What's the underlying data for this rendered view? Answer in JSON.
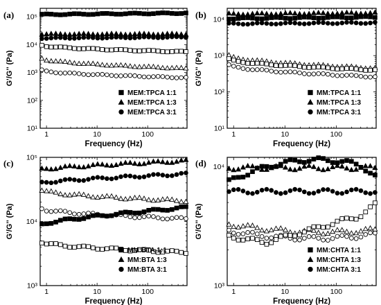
{
  "chart_data": [
    {
      "type": "scatter",
      "panel_label": "(a)",
      "xlabel": "Frequency (Hz)",
      "ylabel": "G'/G'' (Pa)",
      "xscale": "log",
      "yscale": "log",
      "xlim": [
        0.75,
        600
      ],
      "ylim": [
        10,
        200000
      ],
      "xticks": [
        1,
        10,
        100
      ],
      "yticks": [
        10,
        100,
        1000,
        10000,
        100000
      ],
      "ytick_labels": [
        "10¹",
        "10²",
        "10³",
        "10⁴",
        "10⁵"
      ],
      "legend_position": "bottom-right",
      "legend": [
        {
          "label": "MEM:TPCA 1:1",
          "marker": "square"
        },
        {
          "label": "MEM:TPCA 1:3",
          "marker": "triangle"
        },
        {
          "label": "MEM:TPCA 3:1",
          "marker": "circle"
        }
      ],
      "series": [
        {
          "label": "MEM:TPCA 1:1",
          "marker": "square",
          "filled": true,
          "y_start": 120000,
          "y_end": 135000,
          "shape": "flat",
          "points": 32
        },
        {
          "label": "MEM:TPCA 1:3",
          "marker": "triangle",
          "filled": true,
          "y_start": 24000,
          "y_end": 24000,
          "shape": "flat",
          "points": 32
        },
        {
          "label": "MEM:TPCA 3:1",
          "marker": "circle",
          "filled": true,
          "y_start": 17000,
          "y_end": 18500,
          "shape": "flat",
          "points": 32
        },
        {
          "label": "MEM:TPCA 1:1",
          "marker": "square",
          "filled": false,
          "y_start": 9500,
          "y_end": 5500,
          "shape": "decay",
          "points": 32
        },
        {
          "label": "MEM:TPCA 1:3",
          "marker": "triangle",
          "filled": false,
          "y_start": 3200,
          "y_end": 1400,
          "shape": "decay",
          "points": 32
        },
        {
          "label": "MEM:TPCA 3:1",
          "marker": "circle",
          "filled": false,
          "y_start": 1200,
          "y_end": 650,
          "shape": "decay",
          "points": 32
        }
      ]
    },
    {
      "type": "scatter",
      "panel_label": "(b)",
      "xlabel": "Frequency (Hz)",
      "ylabel": "G'/G'' (Pa)",
      "xscale": "log",
      "yscale": "log",
      "xlim": [
        0.75,
        600
      ],
      "ylim": [
        10,
        20000
      ],
      "xticks": [
        1,
        10,
        100
      ],
      "yticks": [
        10,
        100,
        1000,
        10000
      ],
      "ytick_labels": [
        "10¹",
        "10²",
        "10³",
        "10⁴"
      ],
      "legend_position": "bottom-right",
      "legend": [
        {
          "label": "MM:TPCA 1:1",
          "marker": "square"
        },
        {
          "label": "MM:TPCA 1:3",
          "marker": "triangle"
        },
        {
          "label": "MM:TPCA 3:1",
          "marker": "circle"
        }
      ],
      "series": [
        {
          "label": "MM:TPCA 1:3",
          "marker": "triangle",
          "filled": true,
          "y_start": 14000,
          "y_end": 15000,
          "shape": "flat",
          "points": 32
        },
        {
          "label": "MM:TPCA 1:1",
          "marker": "square",
          "filled": true,
          "y_start": 10500,
          "y_end": 11500,
          "shape": "flat",
          "points": 32
        },
        {
          "label": "MM:TPCA 3:1",
          "marker": "circle",
          "filled": true,
          "y_start": 7500,
          "y_end": 8000,
          "shape": "flat",
          "points": 32
        },
        {
          "label": "MM:TPCA 1:3",
          "marker": "triangle",
          "filled": false,
          "y_start": 1000,
          "y_end": 450,
          "shape": "decay",
          "points": 32
        },
        {
          "label": "MM:TPCA 1:1",
          "marker": "square",
          "filled": false,
          "y_start": 800,
          "y_end": 400,
          "shape": "decay",
          "points": 32
        },
        {
          "label": "MM:TPCA 3:1",
          "marker": "circle",
          "filled": false,
          "y_start": 550,
          "y_end": 260,
          "shape": "decay",
          "points": 32
        }
      ]
    },
    {
      "type": "scatter",
      "panel_label": "(c)",
      "xlabel": "Frequency (Hz)",
      "ylabel": "G'/G'' (Pa)",
      "xscale": "log",
      "yscale": "log",
      "xlim": [
        0.75,
        600
      ],
      "ylim": [
        1000,
        100000
      ],
      "xticks": [
        1,
        10,
        100
      ],
      "yticks": [
        1000,
        10000,
        100000
      ],
      "ytick_labels": [
        "10³",
        "10⁴",
        "10⁵"
      ],
      "legend_position": "bottom-right",
      "legend": [
        {
          "label": "MM:BTA 1:1",
          "marker": "square"
        },
        {
          "label": "MM:BTA 1:3",
          "marker": "triangle"
        },
        {
          "label": "MM:BTA 3:1",
          "marker": "circle"
        }
      ],
      "series": [
        {
          "label": "MM:BTA 1:3",
          "marker": "triangle",
          "filled": true,
          "y_start": 65000,
          "y_end": 88000,
          "shape": "rise",
          "points": 32
        },
        {
          "label": "MM:BTA 3:1",
          "marker": "circle",
          "filled": true,
          "y_start": 40000,
          "y_end": 55000,
          "shape": "rise",
          "points": 32
        },
        {
          "label": "MM:BTA 1:3",
          "marker": "triangle",
          "filled": false,
          "y_start": 31000,
          "y_end": 21000,
          "shape": "decay",
          "points": 32
        },
        {
          "label": "MM:BTA 3:1",
          "marker": "circle",
          "filled": false,
          "y_start": 16000,
          "y_end": 11000,
          "shape": "decay",
          "points": 32
        },
        {
          "label": "MM:BTA 1:1",
          "marker": "square",
          "filled": true,
          "y_start": 9000,
          "y_end": 16500,
          "shape": "rise",
          "points": 32
        },
        {
          "label": "MM:BTA 1:1",
          "marker": "square",
          "filled": false,
          "y_start": 4800,
          "y_end": 3300,
          "shape": "decay",
          "points": 32
        }
      ]
    },
    {
      "type": "scatter",
      "panel_label": "(d)",
      "xlabel": "Frequency (Hz)",
      "ylabel": "G'/G'' (Pa)",
      "xscale": "log",
      "yscale": "log",
      "xlim": [
        0.75,
        600
      ],
      "ylim": [
        1000,
        12000
      ],
      "xticks": [
        1,
        10,
        100
      ],
      "yticks": [
        1000,
        10000
      ],
      "ytick_labels": [
        "10³",
        "10⁴"
      ],
      "legend_position": "bottom-right",
      "legend": [
        {
          "label": "MM:CHTA 1:1",
          "marker": "square"
        },
        {
          "label": "MM:CHTA 1:3",
          "marker": "triangle"
        },
        {
          "label": "MM:CHTA 3:1",
          "marker": "circle"
        }
      ],
      "series": [
        {
          "label": "MM:CHTA 1:3",
          "marker": "triangle",
          "filled": true,
          "y_start": 9800,
          "y_end": 9800,
          "shape": "flat",
          "points": 32
        },
        {
          "label": "MM:CHTA 1:1",
          "marker": "square",
          "filled": true,
          "y_start": 7500,
          "y_end": 9500,
          "shape": "hump",
          "peak": 11000,
          "points": 32
        },
        {
          "label": "MM:CHTA 3:1",
          "marker": "circle",
          "filled": true,
          "y_start": 6200,
          "y_end": 6200,
          "shape": "flat",
          "points": 32
        },
        {
          "label": "MM:CHTA 1:3",
          "marker": "triangle",
          "filled": false,
          "y_start": 3300,
          "y_end": 2950,
          "shape": "valley",
          "low": 2850,
          "points": 32
        },
        {
          "label": "MM:CHTA 3:1",
          "marker": "circle",
          "filled": false,
          "y_start": 2900,
          "y_end": 2700,
          "shape": "valley",
          "low": 2500,
          "points": 32
        },
        {
          "label": "MM:CHTA 1:1",
          "marker": "square",
          "filled": false,
          "y_start": 2600,
          "y_end": 4800,
          "shape": "valley_up",
          "low": 2300,
          "points": 32
        }
      ]
    }
  ]
}
